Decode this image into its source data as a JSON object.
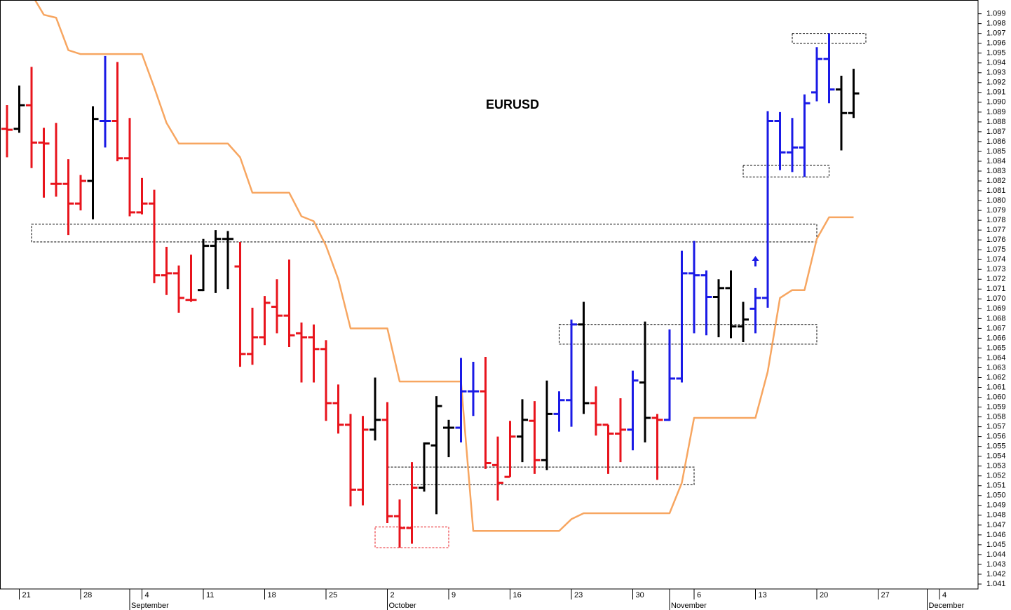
{
  "chart_data": {
    "type": "ohlc",
    "title": "EURUSD",
    "categories": [
      null,
      "21",
      null,
      null,
      null,
      null,
      "28",
      null,
      null,
      null,
      null,
      "4",
      null,
      null,
      null,
      null,
      "11",
      null,
      null,
      null,
      null,
      "18",
      null,
      null,
      null,
      null,
      "25",
      null,
      null,
      null,
      null,
      "2",
      null,
      null,
      null,
      null,
      "9",
      null,
      null,
      null,
      null,
      "16",
      null,
      null,
      null,
      null,
      "23",
      null,
      null,
      null,
      null,
      "30",
      null,
      null,
      null,
      null,
      "6",
      null,
      null,
      null,
      null,
      "13",
      null,
      null,
      null,
      null,
      "20",
      null,
      null,
      null,
      null,
      "27",
      null,
      null,
      null,
      null,
      "4",
      null,
      null,
      null
    ],
    "months": [
      null,
      null,
      null,
      null,
      null,
      null,
      null,
      null,
      null,
      null,
      "September",
      null,
      null,
      null,
      null,
      null,
      null,
      null,
      null,
      null,
      null,
      null,
      null,
      null,
      null,
      null,
      null,
      null,
      null,
      null,
      null,
      "October",
      null,
      null,
      null,
      null,
      null,
      null,
      null,
      null,
      null,
      null,
      null,
      null,
      null,
      null,
      null,
      null,
      null,
      null,
      null,
      null,
      null,
      null,
      "November",
      null,
      null,
      null,
      null,
      null,
      null,
      null,
      null,
      null,
      null,
      null,
      null,
      null,
      null,
      null,
      null,
      null,
      null,
      null,
      null,
      "December",
      null,
      null,
      null,
      null
    ],
    "open": [
      1.0873,
      1.0873,
      1.0897,
      1.0859,
      1.0817,
      1.0817,
      1.0797,
      1.082,
      1.0881,
      1.0881,
      1.0843,
      1.0788,
      1.0797,
      1.0724,
      1.0726,
      1.0699,
      1.0709,
      1.0754,
      1.0761,
      1.0733,
      1.0644,
      1.0661,
      1.0692,
      1.0683,
      1.0665,
      1.0661,
      1.0649,
      1.0594,
      1.0572,
      1.0506,
      1.0567,
      1.0577,
      1.0479,
      1.0467,
      1.0508,
      1.0551,
      1.0569,
      1.0569,
      1.0606,
      1.0606,
      1.0531,
      1.0519,
      1.056,
      1.0576,
      1.0536,
      1.0583,
      1.0597,
      1.0674,
      1.0594,
      1.0572,
      1.0563,
      1.0567,
      1.0615,
      1.0579,
      1.0577,
      1.0619,
      1.0726,
      1.0724,
      1.0702,
      1.0711,
      1.0672,
      1.069,
      1.0701,
      1.0881,
      1.0849,
      1.0854,
      1.091,
      1.0944,
      1.0913,
      1.0889,
      null,
      null,
      null,
      null,
      null,
      null,
      null,
      null,
      null,
      null
    ],
    "high": [
      1.0897,
      1.0917,
      1.0936,
      1.0874,
      1.0879,
      1.0842,
      1.0826,
      1.0896,
      1.0947,
      1.0941,
      1.0884,
      1.0823,
      1.0811,
      1.0753,
      1.0734,
      1.0745,
      1.0761,
      1.077,
      1.0769,
      1.0758,
      1.0691,
      1.0703,
      1.072,
      1.074,
      1.0676,
      1.0674,
      1.0658,
      1.0613,
      1.0583,
      1.0581,
      1.062,
      1.0595,
      1.0496,
      1.0534,
      1.0554,
      1.0601,
      1.0577,
      1.064,
      1.0636,
      1.0641,
      1.056,
      1.0576,
      1.0598,
      1.0596,
      1.0617,
      1.0606,
      1.0679,
      1.0697,
      1.0611,
      1.0572,
      1.0599,
      1.0627,
      1.0677,
      1.0583,
      1.0669,
      1.0749,
      1.0759,
      1.0729,
      1.072,
      1.0729,
      1.0697,
      1.0711,
      1.0891,
      1.089,
      1.0884,
      1.0908,
      1.0956,
      1.097,
      1.0927,
      1.0934,
      null,
      null,
      null,
      null,
      null,
      null,
      null,
      null,
      null,
      null
    ],
    "low": [
      1.0844,
      1.0869,
      1.0833,
      1.0803,
      1.0804,
      1.0765,
      1.079,
      1.0781,
      1.0854,
      1.084,
      1.0784,
      1.0786,
      1.0716,
      1.0704,
      1.0686,
      1.0697,
      1.0708,
      1.0706,
      1.071,
      1.0631,
      1.0633,
      1.0653,
      1.0665,
      1.0651,
      1.0615,
      1.0615,
      1.0576,
      1.0563,
      1.0489,
      1.049,
      1.0556,
      1.0472,
      1.0447,
      1.0451,
      1.0504,
      1.0481,
      1.0539,
      1.0554,
      1.0581,
      1.0527,
      1.0495,
      1.0519,
      1.0534,
      1.0522,
      1.0526,
      1.0565,
      1.057,
      1.0583,
      1.0561,
      1.0522,
      1.0534,
      1.0546,
      1.0554,
      1.0516,
      1.0576,
      1.0615,
      1.0665,
      1.0663,
      1.0661,
      1.066,
      1.0656,
      1.0665,
      1.0691,
      1.0831,
      1.0829,
      1.0824,
      1.0901,
      1.0899,
      1.0851,
      1.0884,
      null,
      null,
      null,
      null,
      null,
      null,
      null,
      null,
      null,
      null
    ],
    "close": [
      1.0872,
      1.0897,
      1.0859,
      1.0858,
      1.0817,
      1.0797,
      1.082,
      1.0883,
      1.0881,
      1.0843,
      1.0788,
      1.0797,
      1.0724,
      1.0726,
      1.0701,
      1.0699,
      1.0754,
      1.0761,
      1.0761,
      1.0644,
      1.0661,
      1.0696,
      1.0683,
      1.0663,
      1.0661,
      1.0649,
      1.0594,
      1.0572,
      1.0506,
      1.0567,
      1.0577,
      1.0479,
      1.0467,
      1.0508,
      1.0553,
      1.0591,
      1.0569,
      1.0606,
      1.0606,
      1.0533,
      1.0513,
      1.056,
      1.0577,
      1.0536,
      1.0583,
      1.0597,
      1.0674,
      1.0594,
      1.0572,
      1.0563,
      1.0567,
      1.0617,
      1.0579,
      1.0577,
      1.0619,
      1.0726,
      1.0724,
      1.0702,
      1.0711,
      1.0672,
      1.0679,
      1.0701,
      1.0881,
      1.0849,
      1.0854,
      1.0899,
      1.0944,
      1.0913,
      1.0889,
      1.0909,
      null,
      null,
      null,
      null,
      null,
      null,
      null,
      null,
      null,
      null
    ],
    "bar_colors": [
      "#e8141c",
      "#000000",
      "#e8141c",
      "#e8141c",
      "#e8141c",
      "#e8141c",
      "#e8141c",
      "#000000",
      "#1a1ae6",
      "#e8141c",
      "#e8141c",
      "#e8141c",
      "#e8141c",
      "#e8141c",
      "#e8141c",
      "#e8141c",
      "#000000",
      "#000000",
      "#000000",
      "#e8141c",
      "#e8141c",
      "#e8141c",
      "#e8141c",
      "#e8141c",
      "#e8141c",
      "#e8141c",
      "#e8141c",
      "#e8141c",
      "#e8141c",
      "#e8141c",
      "#000000",
      "#e8141c",
      "#e8141c",
      "#e8141c",
      "#000000",
      "#000000",
      "#000000",
      "#1a1ae6",
      "#1a1ae6",
      "#e8141c",
      "#e8141c",
      "#e8141c",
      "#000000",
      "#e8141c",
      "#000000",
      "#1a1ae6",
      "#1a1ae6",
      "#000000",
      "#e8141c",
      "#e8141c",
      "#e8141c",
      "#1a1ae6",
      "#000000",
      "#e8141c",
      "#1a1ae6",
      "#1a1ae6",
      "#1a1ae6",
      "#1a1ae6",
      "#000000",
      "#000000",
      "#000000",
      "#1a1ae6",
      "#1a1ae6",
      "#1a1ae6",
      "#1a1ae6",
      "#1a1ae6",
      "#1a1ae6",
      "#1a1ae6",
      "#000000",
      "#000000",
      null,
      null,
      null,
      null,
      null,
      null,
      null,
      null,
      null,
      null
    ],
    "overlay": {
      "color": "#f7a661",
      "values": [
        null,
        null,
        1.101,
        1.0989,
        1.0986,
        1.0953,
        1.0949,
        1.0949,
        1.0949,
        1.0949,
        1.0949,
        1.0949,
        1.0915,
        1.0879,
        1.0858,
        1.0858,
        1.0858,
        1.0858,
        1.0858,
        1.0844,
        1.0808,
        1.0808,
        1.0808,
        1.0808,
        1.0784,
        1.0779,
        1.0754,
        1.072,
        1.067,
        1.067,
        1.067,
        1.067,
        1.0616,
        1.0616,
        1.0616,
        1.0616,
        1.0616,
        1.0616,
        1.0464,
        1.0464,
        1.0464,
        1.0464,
        1.0464,
        1.0464,
        1.0464,
        1.0464,
        1.0476,
        1.0482,
        1.0482,
        1.0482,
        1.0482,
        1.0482,
        1.0482,
        1.0482,
        1.0482,
        1.0513,
        1.0579,
        1.0579,
        1.0579,
        1.0579,
        1.0579,
        1.0579,
        1.0626,
        1.0701,
        1.0709,
        1.0709,
        1.0761,
        1.0783,
        1.0783,
        1.0783,
        null,
        null,
        null,
        null,
        null,
        null,
        null,
        null,
        null,
        null
      ]
    },
    "zones": [
      {
        "from": 2,
        "to": 66,
        "low": 1.0758,
        "high": 1.0776,
        "color": "#000000"
      },
      {
        "from": 64,
        "to": 70,
        "low": 1.096,
        "high": 1.097,
        "color": "#000000"
      },
      {
        "from": 60,
        "to": 67,
        "low": 1.0824,
        "high": 1.0836,
        "color": "#000000"
      },
      {
        "from": 45,
        "to": 66,
        "low": 1.0654,
        "high": 1.0674,
        "color": "#000000"
      },
      {
        "from": 31,
        "to": 56,
        "low": 1.0511,
        "high": 1.0529,
        "color": "#000000"
      },
      {
        "from": 30,
        "to": 36,
        "low": 1.0447,
        "high": 1.0468,
        "color": "#e8141c"
      }
    ],
    "arrows": [
      {
        "x": 61,
        "y": 1.0733,
        "color": "#1a1ae6"
      }
    ],
    "ylim": [
      1.0405,
      1.1004
    ],
    "yticks": [
      1.041,
      1.042,
      1.043,
      1.044,
      1.045,
      1.046,
      1.047,
      1.048,
      1.049,
      {
        "value": 1.05,
        "label": "1.050"
      },
      1.051,
      1.052,
      1.053,
      1.054,
      1.055,
      1.056,
      1.057,
      1.058,
      1.059,
      {
        "value": 1.06,
        "label": "1.060"
      },
      1.061,
      1.062,
      1.063,
      1.064,
      1.065,
      1.066,
      1.067,
      1.068,
      1.069,
      {
        "value": 1.07,
        "label": "1.070"
      },
      1.071,
      1.072,
      1.073,
      1.074,
      1.075,
      1.076,
      1.077,
      1.078,
      1.079,
      {
        "value": 1.08,
        "label": "1.080"
      },
      1.081,
      1.082,
      1.083,
      1.084,
      1.085,
      1.086,
      1.087,
      1.088,
      1.089,
      {
        "value": 1.09,
        "label": "1.090"
      },
      1.091,
      1.092,
      1.093,
      1.094,
      1.095,
      1.096,
      1.097,
      1.098,
      1.099
    ]
  }
}
